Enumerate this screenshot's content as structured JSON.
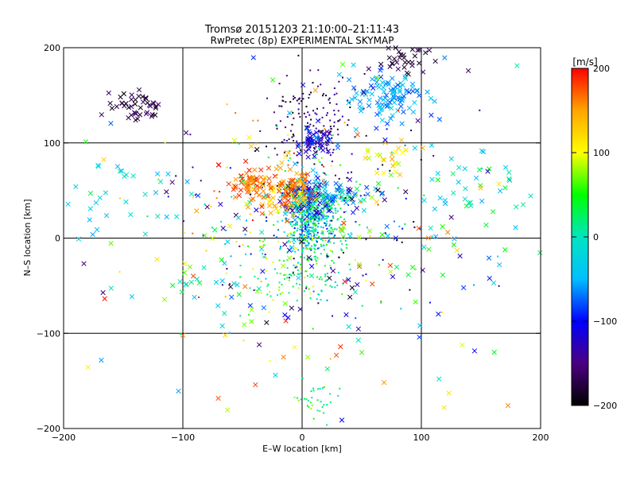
{
  "chart_data": {
    "type": "scatter",
    "title": "Tromsø 20151203 21:10:00–21:11:43",
    "subtitle": "RwPretec (8p) EXPERIMENTAL SKYMAP",
    "xlabel": "E–W location [km]",
    "ylabel": "N–S location [km]",
    "xlim": [
      -200,
      200
    ],
    "ylim": [
      -200,
      200
    ],
    "xticks": [
      -200,
      -100,
      0,
      100,
      200
    ],
    "yticks": [
      -200,
      -100,
      0,
      100,
      200
    ],
    "grid": true,
    "colorbar": {
      "label": "[m/s]",
      "range": [
        -200,
        200
      ],
      "ticks": [
        200,
        100,
        0,
        -100,
        -200
      ],
      "colormap": [
        "#000000",
        "#4b0082",
        "#0000ff",
        "#00bfff",
        "#00e5c0",
        "#00ff00",
        "#ffff00",
        "#ffa500",
        "#ff0000"
      ]
    },
    "marker_types": [
      "cross",
      "dot"
    ],
    "clusters": [
      {
        "x": 8,
        "y": 18,
        "sx": 12,
        "sy": 20,
        "n": 420,
        "vmin": -100,
        "vmax": 60,
        "marker": "dot"
      },
      {
        "x": 5,
        "y": 40,
        "sx": 10,
        "sy": 12,
        "n": 140,
        "vmin": -150,
        "vmax": 40,
        "marker": "cross"
      },
      {
        "x": 10,
        "y": 120,
        "sx": 18,
        "sy": 25,
        "n": 170,
        "vmin": -200,
        "vmax": -130,
        "marker": "dot"
      },
      {
        "x": 12,
        "y": 100,
        "sx": 8,
        "sy": 8,
        "n": 50,
        "vmin": -150,
        "vmax": -60,
        "marker": "cross"
      },
      {
        "x": 72,
        "y": 148,
        "sx": 14,
        "sy": 12,
        "n": 110,
        "vmin": -90,
        "vmax": -30,
        "marker": "cross"
      },
      {
        "x": 88,
        "y": 185,
        "sx": 12,
        "sy": 10,
        "n": 35,
        "vmin": -200,
        "vmax": -160,
        "marker": "cross"
      },
      {
        "x": -135,
        "y": 138,
        "sx": 12,
        "sy": 9,
        "n": 45,
        "vmin": -200,
        "vmax": -150,
        "marker": "cross"
      },
      {
        "x": -45,
        "y": 58,
        "sx": 9,
        "sy": 7,
        "n": 55,
        "vmin": 150,
        "vmax": 200,
        "marker": "cross"
      },
      {
        "x": -15,
        "y": 48,
        "sx": 13,
        "sy": 10,
        "n": 110,
        "vmin": 100,
        "vmax": 200,
        "marker": "cross"
      },
      {
        "x": 75,
        "y": 85,
        "sx": 12,
        "sy": 8,
        "n": 25,
        "vmin": 80,
        "vmax": 150,
        "marker": "cross"
      },
      {
        "x": 35,
        "y": 45,
        "sx": 15,
        "sy": 8,
        "n": 45,
        "vmin": -100,
        "vmax": 60,
        "marker": "cross"
      },
      {
        "x": -5,
        "y": -20,
        "sx": 20,
        "sy": 30,
        "n": 120,
        "vmin": -20,
        "vmax": 120,
        "marker": "dot"
      },
      {
        "x": 15,
        "y": -45,
        "sx": 15,
        "sy": 15,
        "n": 35,
        "vmin": -40,
        "vmax": 80,
        "marker": "dot"
      },
      {
        "x": 10,
        "y": -170,
        "sx": 10,
        "sy": 12,
        "n": 35,
        "vmin": -20,
        "vmax": 80,
        "marker": "dot"
      },
      {
        "x": 140,
        "y": 45,
        "sx": 25,
        "sy": 30,
        "n": 45,
        "vmin": -60,
        "vmax": 60,
        "marker": "cross"
      },
      {
        "x": -150,
        "y": 50,
        "sx": 20,
        "sy": 25,
        "n": 25,
        "vmin": -60,
        "vmax": 0,
        "marker": "cross"
      },
      {
        "x": -70,
        "y": -60,
        "sx": 25,
        "sy": 25,
        "n": 25,
        "vmin": -50,
        "vmax": 80,
        "marker": "cross"
      },
      {
        "x": 0,
        "y": 0,
        "sx": 90,
        "sy": 90,
        "n": 220,
        "vmin": -200,
        "vmax": 200,
        "marker": "cross"
      },
      {
        "x": 0,
        "y": 30,
        "sx": 60,
        "sy": 60,
        "n": 220,
        "vmin": -200,
        "vmax": 200,
        "marker": "dot"
      }
    ]
  }
}
